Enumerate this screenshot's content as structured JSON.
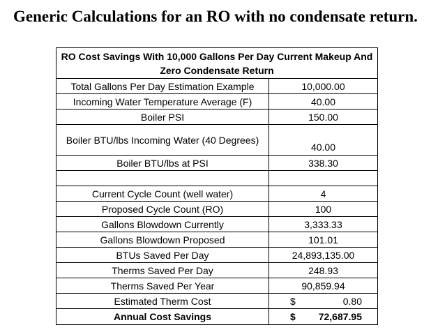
{
  "document": {
    "title": "Generic Calculations for an RO with no condensate return."
  },
  "table": {
    "header": "RO Cost Savings With 10,000 Gallons Per Day Current Makeup And Zero Condensate Return",
    "rows": [
      {
        "label": "Total Gallons Per Day Estimation Example",
        "value": "10,000.00"
      },
      {
        "label": "Incoming Water Temperature Average (F)",
        "value": "40.00"
      },
      {
        "label": "Boiler PSI",
        "value": "150.00"
      },
      {
        "label": "Boiler BTU/lbs Incoming Water (40 Degrees)",
        "value": "40.00"
      },
      {
        "label": "Boiler BTU/lbs at PSI",
        "value": "338.30"
      },
      {
        "label": "",
        "value": ""
      },
      {
        "label": "Current Cycle Count (well water)",
        "value": "4"
      },
      {
        "label": "Proposed Cycle Count (RO)",
        "value": "100"
      },
      {
        "label": "Gallons Blowdown Currently",
        "value": "3,333.33"
      },
      {
        "label": "Gallons Blowdown Proposed",
        "value": "101.01"
      },
      {
        "label": "BTUs Saved Per Day",
        "value": "24,893,135.00"
      },
      {
        "label": "Therms Saved Per Day",
        "value": "248.93"
      },
      {
        "label": "Therms Saved Per Year",
        "value": "90,859.94"
      },
      {
        "label": "Estimated Therm Cost",
        "currency": "$",
        "value": "0.80"
      },
      {
        "label": "Annual Cost Savings",
        "currency": "$",
        "value": "72,687.95"
      }
    ]
  }
}
